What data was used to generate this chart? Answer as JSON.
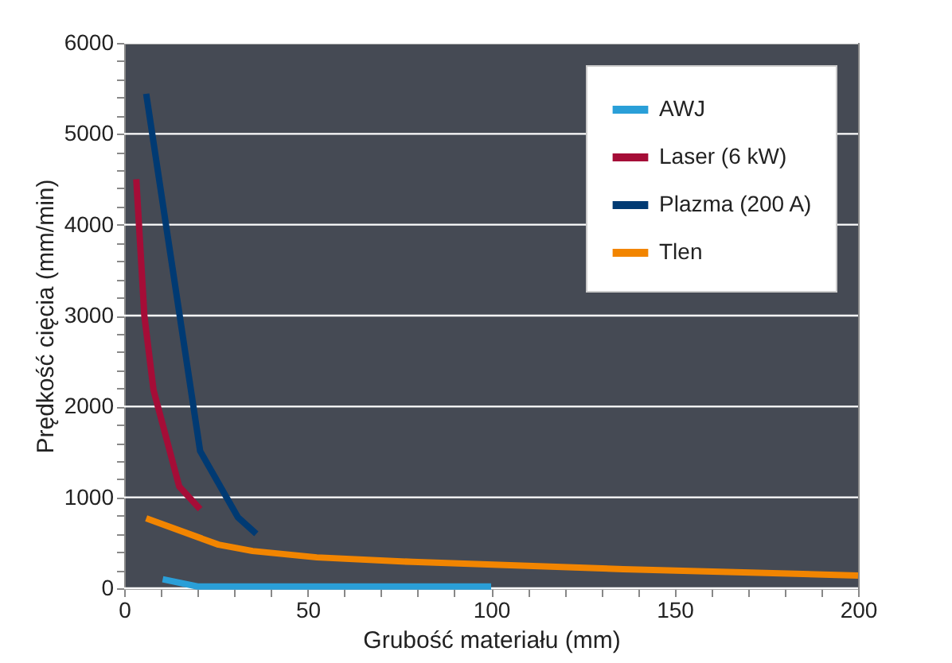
{
  "chart_data": {
    "type": "line",
    "xlabel": "Grubość materiału (mm)",
    "ylabel": "Prędkość cięcia (mm/min)",
    "xlim": [
      0,
      200
    ],
    "ylim": [
      0,
      6000
    ],
    "xticks": [
      0,
      {
        "value": 10,
        "label": null
      },
      {
        "value": 20,
        "label": null
      },
      {
        "value": 30,
        "label": null
      },
      {
        "value": 40,
        "label": null
      },
      50,
      {
        "value": 60,
        "label": null
      },
      {
        "value": 70,
        "label": null
      },
      {
        "value": 80,
        "label": null
      },
      {
        "value": 90,
        "label": null
      },
      100,
      {
        "value": 110,
        "label": null
      },
      {
        "value": 120,
        "label": null
      },
      {
        "value": 130,
        "label": null
      },
      {
        "value": 140,
        "label": null
      },
      150,
      {
        "value": 160,
        "label": null
      },
      {
        "value": 170,
        "label": null
      },
      {
        "value": 180,
        "label": null
      },
      {
        "value": 190,
        "label": null
      },
      200
    ],
    "yticks": [
      0,
      {
        "value": 200,
        "label": null
      },
      {
        "value": 400,
        "label": null
      },
      {
        "value": 600,
        "label": null
      },
      {
        "value": 800,
        "label": null
      },
      1000,
      {
        "value": 1200,
        "label": null
      },
      {
        "value": 1400,
        "label": null
      },
      {
        "value": 1600,
        "label": null
      },
      {
        "value": 1800,
        "label": null
      },
      2000,
      {
        "value": 2200,
        "label": null
      },
      {
        "value": 2400,
        "label": null
      },
      {
        "value": 2600,
        "label": null
      },
      {
        "value": 2800,
        "label": null
      },
      3000,
      {
        "value": 3200,
        "label": null
      },
      {
        "value": 3400,
        "label": null
      },
      {
        "value": 3600,
        "label": null
      },
      {
        "value": 3800,
        "label": null
      },
      4000,
      {
        "value": 4200,
        "label": null
      },
      {
        "value": 4400,
        "label": null
      },
      {
        "value": 4600,
        "label": null
      },
      {
        "value": 4800,
        "label": null
      },
      5000,
      {
        "value": 5200,
        "label": null
      },
      {
        "value": 5400,
        "label": null
      },
      {
        "value": 5600,
        "label": null
      },
      {
        "value": 5800,
        "label": null
      },
      6000
    ],
    "grid": "y",
    "legend": "top right",
    "marker": "none",
    "line_style": "solid",
    "series": [
      {
        "name": "AWJ",
        "color": "#2a9fd8",
        "x": [
          10.5,
          20,
          100
        ],
        "values": [
          100,
          20,
          20
        ]
      },
      {
        "name": "Laser (6 kW)",
        "color": "#a50d37",
        "x": [
          3.3,
          5.5,
          8,
          15,
          20.7
        ],
        "values": [
          4500,
          3000,
          2180,
          1120,
          870
        ]
      },
      {
        "name": "Plazma (200 A)",
        "color": "#003a73",
        "x": [
          6,
          20.7,
          31,
          36
        ],
        "values": [
          5440,
          1510,
          780,
          600
        ]
      },
      {
        "name": "Tlen",
        "color": "#f28500",
        "x": [
          6,
          25.7,
          35,
          52.5,
          78.5,
          136,
          200
        ],
        "values": [
          770,
          480,
          410,
          340,
          290,
          210,
          140
        ]
      }
    ]
  }
}
